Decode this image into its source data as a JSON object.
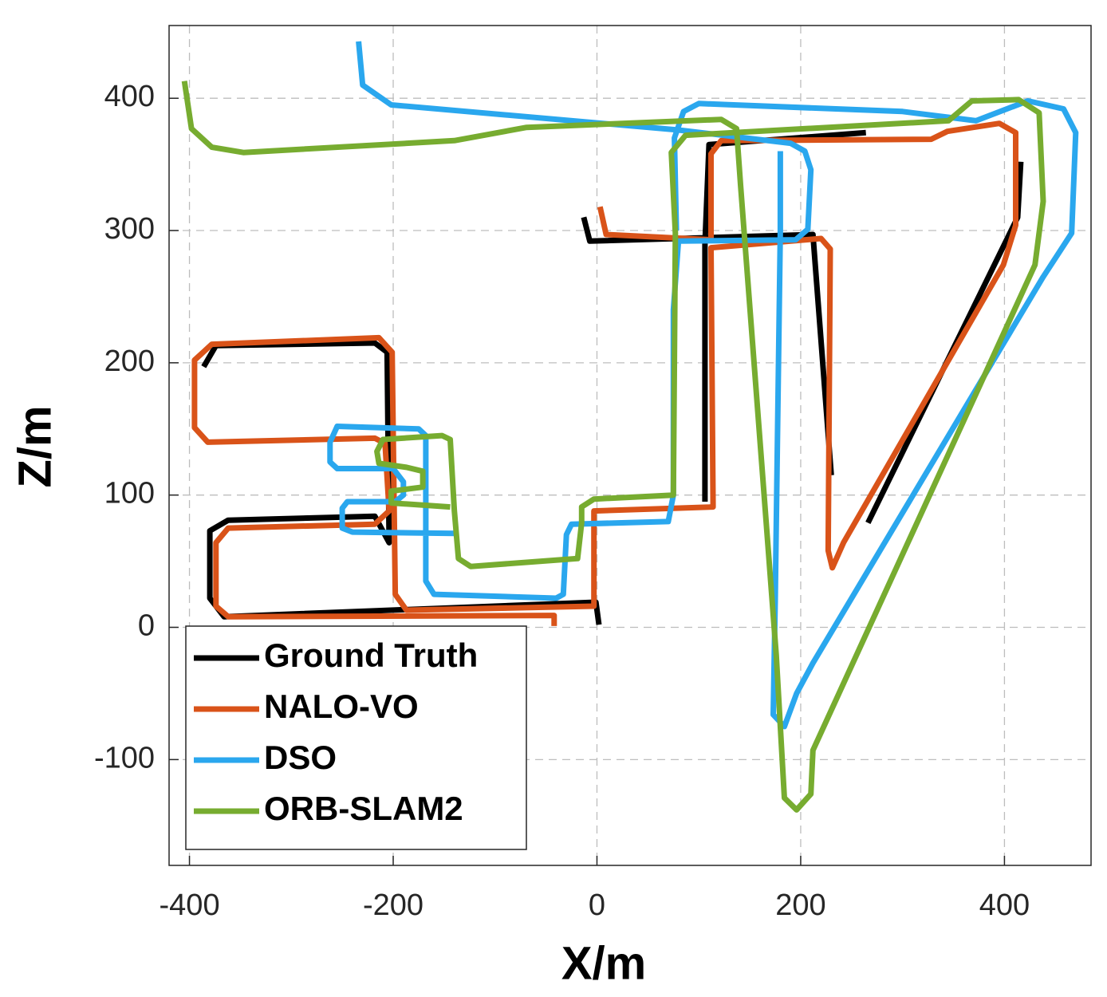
{
  "chart_data": {
    "type": "line",
    "xlabel": "X/m",
    "ylabel": "Z/m",
    "xlim": [
      -420,
      485
    ],
    "ylim": [
      -180,
      455
    ],
    "xticks": [
      -400,
      -200,
      0,
      200,
      400
    ],
    "yticks": [
      -100,
      0,
      100,
      200,
      300,
      400
    ],
    "grid": true,
    "legend": "lower left",
    "series": [
      {
        "name": "Ground Truth",
        "color": "#000000",
        "x": [
          2,
          -1,
          -366,
          -380,
          -380,
          -362,
          -218,
          -204,
          -206,
          -218,
          -374,
          -386,
          null,
          -13,
          -7,
          212,
          230,
          null,
          106,
          106,
          110,
          264,
          null,
          416,
          413,
          266
        ],
        "values": [
          2,
          19,
          8,
          22,
          73,
          81,
          84,
          64,
          208,
          215,
          213,
          197,
          null,
          310,
          292,
          297,
          115,
          null,
          95,
          290,
          365,
          374,
          null,
          352,
          310,
          79
        ]
      },
      {
        "name": "NALO-VO",
        "color": "#d95319",
        "x": [
          -42,
          -42,
          -362,
          -374,
          -374,
          -362,
          -218,
          -204,
          -208,
          -218,
          -382,
          -395,
          -395,
          -378,
          -214,
          -201,
          -198,
          -187,
          -3,
          -3,
          114,
          112,
          220,
          229,
          227,
          231,
          242,
          399,
          411,
          411,
          395,
          344,
          328,
          122,
          112,
          112,
          9,
          3
        ],
        "values": [
          1,
          9,
          8,
          16,
          64,
          75,
          78,
          88,
          139,
          143,
          140,
          151,
          202,
          214,
          219,
          208,
          25,
          13,
          16,
          88,
          91,
          287,
          294,
          286,
          58,
          45,
          64,
          274,
          304,
          374,
          381,
          375,
          369,
          368,
          358,
          293,
          297,
          318
        ]
      },
      {
        "name": "DSO",
        "color": "#2aa7ee",
        "x": [
          -234,
          -230,
          -202,
          80,
          190,
          204,
          210,
          207,
          195,
          80,
          75,
          75,
          70,
          -25,
          -30,
          -33,
          -40,
          -160,
          -168,
          -168,
          -175,
          -255,
          -262,
          -262,
          -255,
          -200,
          -190,
          -190,
          -198,
          -245,
          -250,
          -250,
          -240,
          -140,
          null,
          78,
          76,
          85,
          100,
          300,
          372,
          423,
          458,
          470,
          466,
          438,
          212,
          196,
          184,
          173,
          175,
          180,
          180
        ],
        "values": [
          443,
          410,
          395,
          376,
          366,
          360,
          346,
          301,
          293,
          292,
          240,
          100,
          80,
          78,
          70,
          25,
          22,
          25,
          35,
          145,
          150,
          152,
          140,
          125,
          120,
          120,
          110,
          100,
          95,
          95,
          90,
          75,
          72,
          71,
          null,
          300,
          370,
          390,
          396,
          390,
          383,
          398,
          392,
          374,
          298,
          265,
          -27,
          -50,
          -75,
          -66,
          20,
          300,
          360
        ]
      },
      {
        "name": "ORB-SLAM2",
        "color": "#77ac30",
        "x": [
          -405,
          -398,
          -378,
          -347,
          -140,
          -69,
          122,
          137,
          141,
          176,
          184,
          196,
          210,
          212,
          430,
          438,
          434,
          414,
          368,
          345,
          87,
          73,
          77,
          75,
          -3,
          -15,
          -15,
          -19,
          -124,
          -136,
          -140,
          -144,
          -152,
          -210,
          -216,
          -214,
          -187,
          -171,
          -171,
          -202,
          -202,
          -144
        ],
        "values": [
          413,
          377,
          363,
          359,
          368,
          378,
          384,
          377,
          334,
          -21,
          -129,
          -138,
          -126,
          -93,
          274,
          322,
          389,
          399,
          398,
          383,
          372,
          359,
          298,
          100,
          97,
          91,
          79,
          52,
          46,
          52,
          88,
          142,
          145,
          142,
          133,
          124,
          121,
          118,
          106,
          103,
          94,
          91
        ]
      }
    ]
  }
}
